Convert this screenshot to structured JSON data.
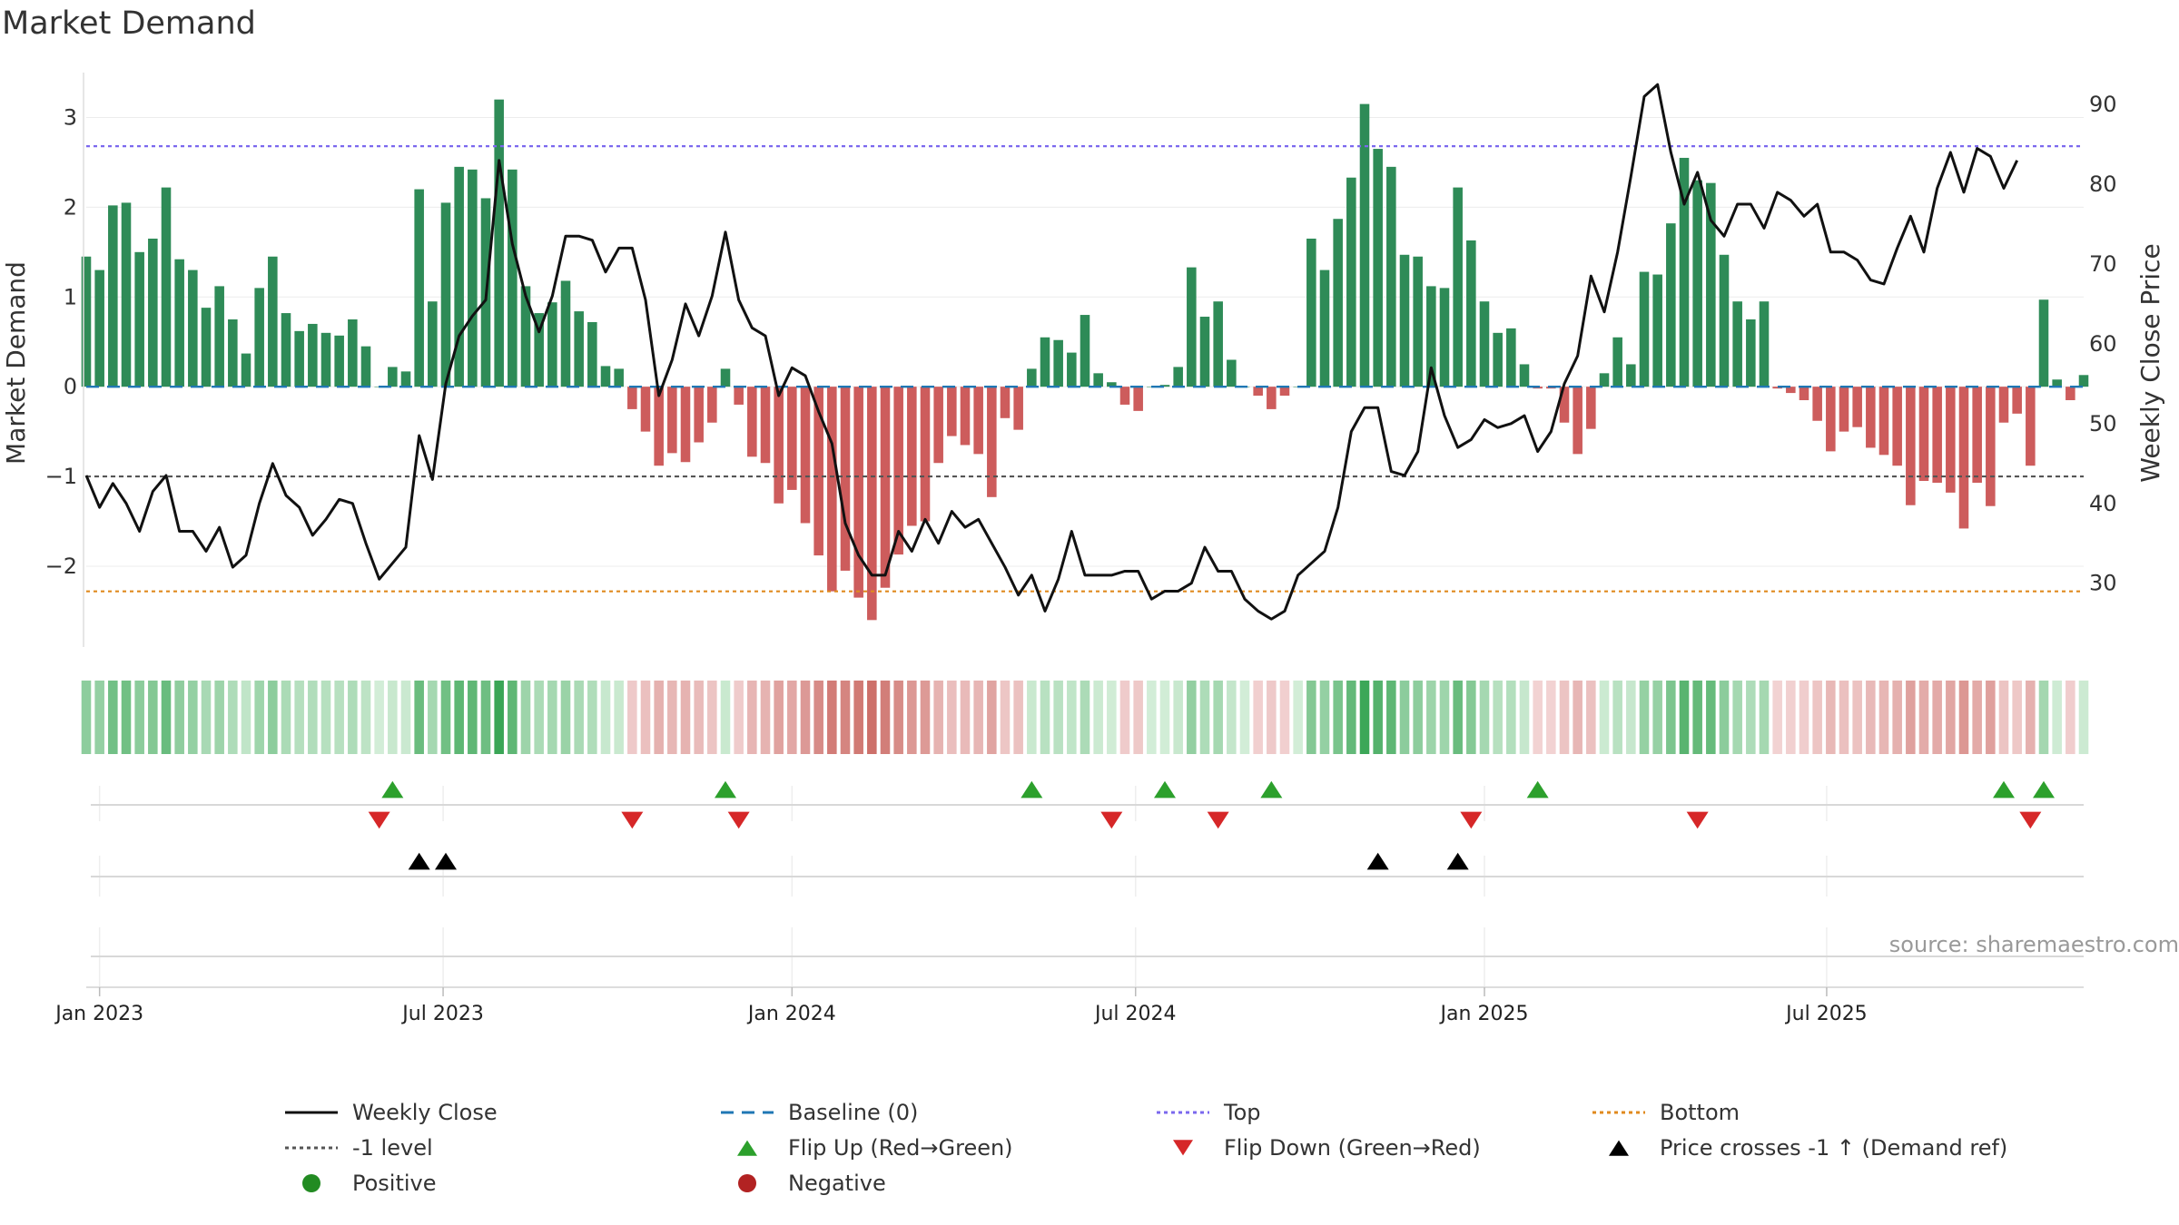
{
  "title": "Market Demand",
  "source": "source: sharemaestro.com",
  "colors": {
    "positive_bar": "#2e8b57",
    "negative_bar": "#cd5c5c",
    "price_line": "#111111",
    "baseline": "#1f77b4",
    "top_line": "#7b68ee",
    "bottom_line": "#e08a1e",
    "minus1_line": "#555555",
    "flip_up": "#2ca02c",
    "flip_down": "#d62728",
    "cross": "#000000",
    "positive_dot": "#228b22",
    "negative_dot": "#b22222"
  },
  "legend": [
    {
      "id": "weekly-close",
      "label": "Weekly Close",
      "style": "solid-line",
      "color": "#111111"
    },
    {
      "id": "baseline",
      "label": "Baseline (0)",
      "style": "dash-line",
      "color": "#1f77b4"
    },
    {
      "id": "top",
      "label": "Top",
      "style": "dot-line",
      "color": "#7b68ee"
    },
    {
      "id": "bottom",
      "label": "Bottom",
      "style": "dot-line",
      "color": "#e08a1e"
    },
    {
      "id": "minus1",
      "label": "-1 level",
      "style": "dot-line",
      "color": "#555555"
    },
    {
      "id": "flip-up",
      "label": "Flip Up (Red→Green)",
      "style": "triangle-up",
      "color": "#2ca02c"
    },
    {
      "id": "flip-down",
      "label": "Flip Down (Green→Red)",
      "style": "triangle-down",
      "color": "#d62728"
    },
    {
      "id": "price-cross",
      "label": "Price crosses -1 ↑ (Demand ref)",
      "style": "triangle-up",
      "color": "#000000"
    },
    {
      "id": "positive",
      "label": "Positive",
      "style": "dot",
      "color": "#228b22"
    },
    {
      "id": "negative",
      "label": "Negative",
      "style": "dot",
      "color": "#b22222"
    }
  ],
  "chart_data": {
    "type": "bar+line",
    "title": "Market Demand",
    "ylabel_left": "Market Demand",
    "ylabel_right": "Weekly Close Price",
    "ylim_left": [
      -2.9,
      3.5
    ],
    "ylim_right": [
      22,
      94
    ],
    "yticks_left": [
      -2,
      -1,
      0,
      1,
      2,
      3
    ],
    "yticks_left_labels": [
      "−2",
      "−1",
      "0",
      "1",
      "2",
      "3"
    ],
    "yticks_right": [
      30,
      40,
      50,
      60,
      70,
      80,
      90
    ],
    "yticks_right_labels": [
      "30",
      "40",
      "50",
      "60",
      "70",
      "80",
      "90"
    ],
    "x_start": "2022-12-26",
    "xticks": [
      {
        "label": "Jan 2023",
        "week": 1
      },
      {
        "label": "Jul 2023",
        "week": 26.8
      },
      {
        "label": "Jan 2024",
        "week": 53
      },
      {
        "label": "Jul 2024",
        "week": 78.8
      },
      {
        "label": "Jan 2025",
        "week": 105
      },
      {
        "label": "Jul 2025",
        "week": 130.7
      }
    ],
    "reference_lines": {
      "top": 2.68,
      "bottom": -2.28,
      "minus1": -1.0,
      "baseline": 0
    },
    "demand": [
      1.45,
      1.3,
      2.02,
      2.05,
      1.5,
      1.65,
      2.22,
      1.42,
      1.3,
      0.88,
      1.12,
      0.75,
      0.37,
      1.1,
      1.45,
      0.82,
      0.62,
      0.7,
      0.6,
      0.57,
      0.75,
      0.45,
      0.0,
      0.22,
      0.17,
      2.2,
      0.95,
      2.05,
      2.45,
      2.42,
      2.1,
      3.2,
      2.42,
      1.12,
      0.82,
      0.94,
      1.18,
      0.84,
      0.72,
      0.23,
      0.2,
      -0.25,
      -0.5,
      -0.88,
      -0.74,
      -0.84,
      -0.62,
      -0.4,
      0.2,
      -0.2,
      -0.78,
      -0.85,
      -1.3,
      -1.15,
      -1.52,
      -1.88,
      -2.28,
      -2.05,
      -2.35,
      -2.6,
      -2.24,
      -1.87,
      -1.55,
      -1.5,
      -0.85,
      -0.55,
      -0.65,
      -0.75,
      -1.23,
      -0.35,
      -0.48,
      0.2,
      0.55,
      0.52,
      0.38,
      0.8,
      0.15,
      0.05,
      -0.2,
      -0.27,
      0.0,
      0.02,
      0.22,
      1.33,
      0.78,
      0.95,
      0.3,
      0.0,
      -0.1,
      -0.25,
      -0.1,
      0.0,
      1.65,
      1.3,
      1.87,
      2.33,
      3.15,
      2.65,
      2.45,
      1.47,
      1.45,
      1.12,
      1.1,
      2.22,
      1.63,
      0.95,
      0.6,
      0.65,
      0.25,
      -0.02,
      -0.02,
      -0.4,
      -0.75,
      -0.47,
      0.15,
      0.55,
      0.25,
      1.28,
      1.25,
      1.82,
      2.55,
      2.3,
      2.27,
      1.47,
      0.95,
      0.75,
      0.95,
      -0.02,
      -0.07,
      -0.15,
      -0.38,
      -0.72,
      -0.5,
      -0.45,
      -0.68,
      -0.76,
      -0.88,
      -1.32,
      -1.05,
      -1.07,
      -1.18,
      -1.58,
      -1.07,
      -1.33,
      -0.4,
      -0.3,
      -0.88,
      0.97,
      0.08,
      -0.15,
      0.13
    ],
    "price": [
      43.5,
      39.5,
      42.5,
      40.0,
      36.5,
      41.5,
      43.5,
      36.5,
      36.5,
      34.0,
      37.0,
      32.0,
      33.5,
      40.0,
      45.0,
      41.0,
      39.5,
      36.0,
      38.0,
      40.5,
      40.0,
      35.0,
      30.5,
      32.5,
      34.5,
      48.5,
      43.0,
      55.0,
      61.0,
      63.5,
      65.5,
      83.0,
      72.5,
      66.0,
      61.5,
      66.0,
      73.5,
      73.5,
      73.0,
      69.0,
      72.0,
      72.0,
      65.5,
      53.5,
      58.0,
      65.0,
      61.0,
      66.0,
      74.0,
      65.5,
      62.0,
      61.0,
      53.5,
      57.0,
      56.0,
      51.5,
      47.5,
      37.5,
      33.5,
      31.0,
      31.0,
      36.5,
      34.0,
      38.0,
      35.0,
      39.0,
      37.0,
      38.0,
      35.0,
      32.0,
      28.5,
      31.0,
      26.5,
      30.5,
      36.5,
      31.0,
      31.0,
      31.0,
      31.5,
      31.5,
      28.0,
      29.0,
      29.0,
      30.0,
      34.5,
      31.5,
      31.5,
      28.0,
      26.5,
      25.5,
      26.5,
      31.0,
      32.5,
      34.0,
      39.5,
      49.0,
      52.0,
      52.0,
      44.0,
      43.5,
      46.5,
      57.0,
      51.0,
      47.0,
      48.0,
      50.5,
      49.5,
      50.0,
      51.0,
      46.5,
      49.0,
      55.0,
      58.5,
      68.5,
      64.0,
      71.5,
      81.0,
      91.0,
      92.5,
      84.0,
      77.5,
      81.5,
      75.5,
      73.5,
      77.5,
      77.5,
      74.5,
      79.0,
      78.0,
      76.0,
      77.5,
      71.5,
      71.5,
      70.5,
      68.0,
      67.5,
      72.0,
      76.0,
      71.5,
      79.5,
      84.0,
      79.0,
      84.5,
      83.5,
      79.5,
      83.0
    ],
    "flip_up_weeks": [
      23,
      48,
      71,
      81,
      89,
      109,
      144,
      147
    ],
    "flip_down_weeks": [
      22,
      41,
      49,
      77,
      85,
      104,
      121,
      146
    ],
    "price_cross_weeks": [
      25,
      27,
      97,
      103
    ]
  }
}
